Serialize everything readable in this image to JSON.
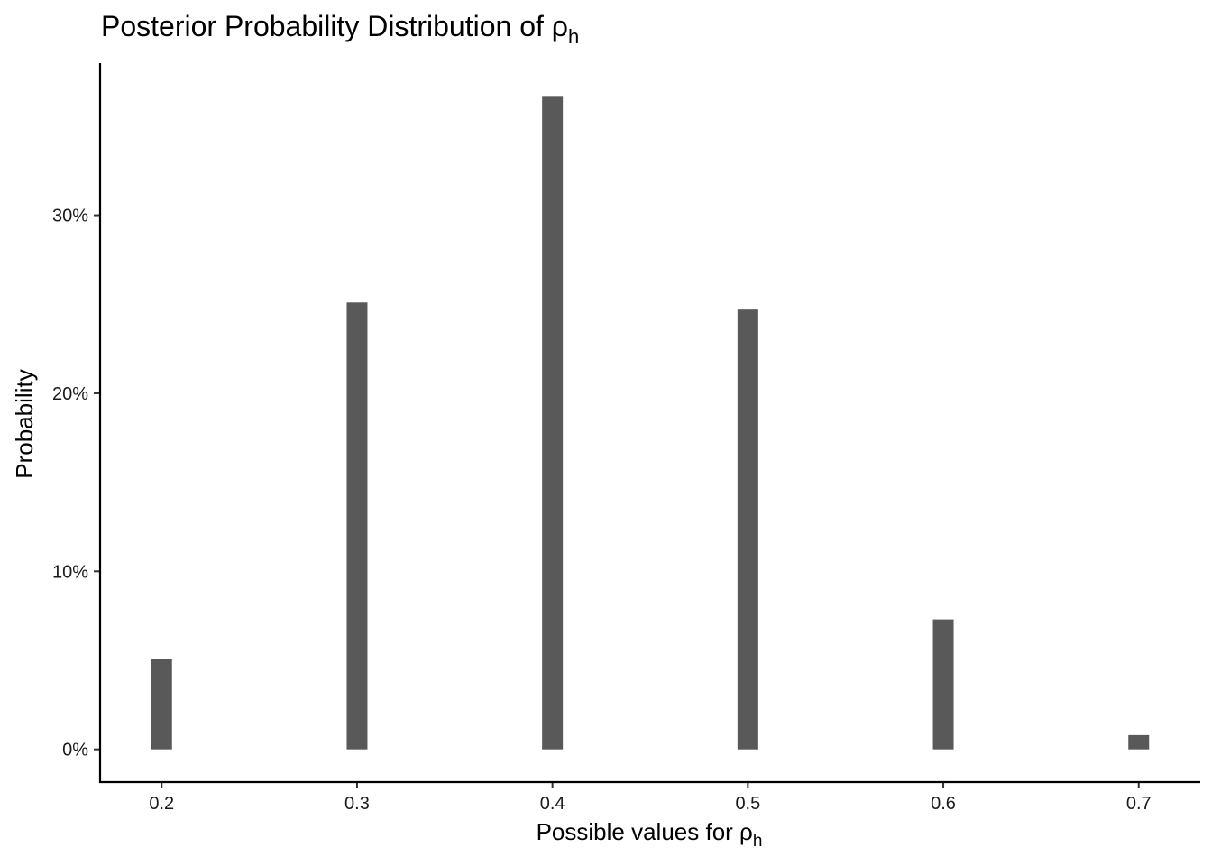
{
  "chart_data": {
    "type": "bar",
    "title": "Posterior Probability Distribution of ρ",
    "title_subscript": "h",
    "xlabel": "Possible values for ρ",
    "xlabel_subscript": "h",
    "ylabel": "Probability",
    "x": [
      0.2,
      0.3,
      0.4,
      0.5,
      0.6,
      0.7
    ],
    "values": [
      0.051,
      0.251,
      0.367,
      0.247,
      0.073,
      0.008
    ],
    "x_ticks": [
      0.2,
      0.3,
      0.4,
      0.5,
      0.6,
      0.7
    ],
    "x_tick_labels": [
      "0.2",
      "0.3",
      "0.4",
      "0.5",
      "0.6",
      "0.7"
    ],
    "y_ticks": [
      0,
      0.1,
      0.2,
      0.3
    ],
    "y_tick_labels": [
      "0%",
      "10%",
      "20%",
      "30%"
    ],
    "xlim": [
      0.1685,
      0.7315
    ],
    "ylim": [
      -0.0184,
      0.3854
    ],
    "bar_color": "#595959",
    "grid": false,
    "legend": "none"
  }
}
